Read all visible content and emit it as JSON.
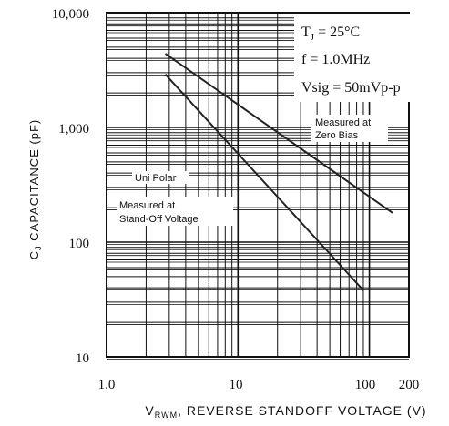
{
  "chart_data": {
    "type": "line",
    "scale": {
      "x": "log",
      "y": "log"
    },
    "xlim": [
      1,
      200
    ],
    "ylim": [
      10,
      10000
    ],
    "xticks": [
      "1.0",
      "10",
      "100",
      "200"
    ],
    "yticks": [
      "10",
      "100",
      "1,000",
      "10,000"
    ],
    "grid": true,
    "ylabel": {
      "base": "C",
      "sub": "J",
      "rest": " CAPACITANCE (pF)"
    },
    "xlabel": {
      "base": "V",
      "sub": "RWM",
      "rest": ", REVERSE STANDOFF VOLTAGE (V)"
    },
    "conditions": [
      {
        "base": "T",
        "sub": "J",
        "rest": " = 25°C"
      },
      {
        "base": "f = 1.0MHz",
        "sub": "",
        "rest": ""
      },
      {
        "base": "Vsig = 50mVp-p",
        "sub": "",
        "rest": ""
      }
    ],
    "annotations": {
      "zero_bias": [
        "Measured at",
        "Zero Bias"
      ],
      "uni_polar": "Uni Polar",
      "standoff": [
        "Measured at",
        "Stand-Off Voltage"
      ]
    },
    "series": [
      {
        "x": [
          2.8,
          150
        ],
        "y": [
          4400,
          180
        ]
      },
      {
        "x": [
          2.8,
          90
        ],
        "y": [
          2900,
          38
        ]
      }
    ],
    "colors": {
      "line": "#222222",
      "grid": "#111111",
      "background": "#ffffff"
    }
  }
}
